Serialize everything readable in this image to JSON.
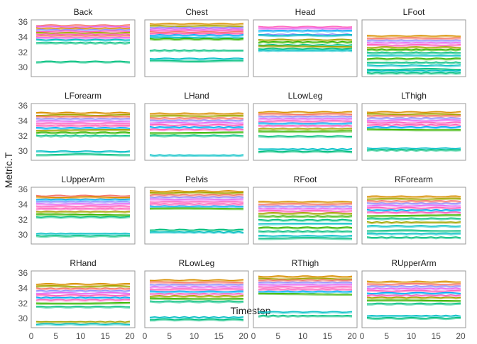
{
  "chart_data": {
    "type": "line",
    "layout": "facet_wrap_4x4",
    "xlabel": "Timestep",
    "ylabel": "Metric.T",
    "xlim": [
      0,
      21
    ],
    "ylim": [
      28.8,
      36.3
    ],
    "x_ticks": [
      0,
      5,
      10,
      15,
      20
    ],
    "y_ticks": [
      30,
      32,
      34,
      36
    ],
    "x_values": [
      1,
      2,
      3,
      4,
      5,
      6,
      7,
      8,
      9,
      10,
      11,
      12,
      13,
      14,
      15,
      16,
      17,
      18,
      19,
      20
    ],
    "palette": [
      "#F8766D",
      "#D89000",
      "#A3A500",
      "#39B600",
      "#00BF7D",
      "#00BFC4",
      "#00B0F6",
      "#9590FF",
      "#E76BF3",
      "#FF62BC"
    ],
    "note_series": "Each panel shows many overlapping per-subject time series; levels listed per panel are approximate constant values read from the plot (color index into palette).",
    "panels": [
      {
        "name": "Back",
        "series": [
          [
            0,
            35.6
          ],
          [
            8,
            35.4
          ],
          [
            1,
            35.2
          ],
          [
            7,
            35.0
          ],
          [
            9,
            34.8
          ],
          [
            2,
            34.6
          ],
          [
            9,
            34.4
          ],
          [
            0,
            34.2
          ],
          [
            8,
            34.0
          ],
          [
            5,
            33.7
          ],
          [
            4,
            33.3
          ],
          [
            4,
            30.8
          ]
        ]
      },
      {
        "name": "Chest",
        "series": [
          [
            1,
            35.8
          ],
          [
            2,
            35.5
          ],
          [
            7,
            35.3
          ],
          [
            8,
            35.1
          ],
          [
            9,
            34.9
          ],
          [
            0,
            34.7
          ],
          [
            9,
            34.5
          ],
          [
            6,
            34.3
          ],
          [
            5,
            34.0
          ],
          [
            3,
            33.8
          ],
          [
            4,
            32.3
          ],
          [
            5,
            31.2
          ],
          [
            4,
            30.9
          ]
        ]
      },
      {
        "name": "Head",
        "series": [
          [
            9,
            35.4
          ],
          [
            8,
            35.2
          ],
          [
            6,
            34.9
          ],
          [
            7,
            34.4
          ],
          [
            5,
            34.3
          ],
          [
            2,
            33.7
          ],
          [
            3,
            33.4
          ],
          [
            4,
            33.0
          ],
          [
            2,
            32.8
          ],
          [
            4,
            32.5
          ],
          [
            5,
            32.3
          ]
        ]
      },
      {
        "name": "LFoot",
        "series": [
          [
            1,
            34.2
          ],
          [
            0,
            33.9
          ],
          [
            7,
            33.6
          ],
          [
            8,
            33.3
          ],
          [
            9,
            33.0
          ],
          [
            2,
            32.7
          ],
          [
            3,
            32.4
          ],
          [
            4,
            32.0
          ],
          [
            5,
            31.6
          ],
          [
            3,
            31.2
          ],
          [
            4,
            30.7
          ],
          [
            5,
            30.3
          ],
          [
            4,
            29.8
          ],
          [
            5,
            29.6
          ],
          [
            4,
            29.3
          ]
        ]
      },
      {
        "name": "LForearm",
        "series": [
          [
            1,
            35.1
          ],
          [
            2,
            34.8
          ],
          [
            0,
            34.6
          ],
          [
            7,
            34.3
          ],
          [
            8,
            34.0
          ],
          [
            9,
            33.7
          ],
          [
            9,
            33.4
          ],
          [
            6,
            33.1
          ],
          [
            2,
            32.8
          ],
          [
            3,
            32.5
          ],
          [
            4,
            32.1
          ],
          [
            5,
            30.0
          ],
          [
            4,
            29.6
          ]
        ]
      },
      {
        "name": "LHand",
        "series": [
          [
            1,
            35.0
          ],
          [
            2,
            34.7
          ],
          [
            0,
            34.4
          ],
          [
            7,
            34.1
          ],
          [
            8,
            33.8
          ],
          [
            9,
            33.5
          ],
          [
            6,
            33.2
          ],
          [
            9,
            32.9
          ],
          [
            3,
            32.5
          ],
          [
            4,
            32.1
          ],
          [
            5,
            29.5
          ]
        ]
      },
      {
        "name": "LLowLeg",
        "series": [
          [
            1,
            35.2
          ],
          [
            0,
            34.9
          ],
          [
            7,
            34.6
          ],
          [
            8,
            34.3
          ],
          [
            9,
            34.0
          ],
          [
            6,
            33.7
          ],
          [
            9,
            33.4
          ],
          [
            2,
            33.0
          ],
          [
            3,
            32.7
          ],
          [
            4,
            32.0
          ],
          [
            5,
            30.3
          ],
          [
            4,
            30.0
          ]
        ]
      },
      {
        "name": "LThigh",
        "series": [
          [
            1,
            35.2
          ],
          [
            2,
            34.9
          ],
          [
            0,
            34.7
          ],
          [
            7,
            34.4
          ],
          [
            8,
            34.1
          ],
          [
            9,
            33.8
          ],
          [
            9,
            33.5
          ],
          [
            6,
            33.2
          ],
          [
            3,
            32.9
          ],
          [
            5,
            30.4
          ],
          [
            4,
            30.2
          ]
        ]
      },
      {
        "name": "LUpperArm",
        "series": [
          [
            0,
            35.2
          ],
          [
            1,
            35.0
          ],
          [
            6,
            34.7
          ],
          [
            7,
            34.4
          ],
          [
            8,
            34.1
          ],
          [
            9,
            33.8
          ],
          [
            9,
            33.5
          ],
          [
            2,
            33.1
          ],
          [
            3,
            32.7
          ],
          [
            4,
            32.4
          ],
          [
            5,
            30.2
          ],
          [
            4,
            29.9
          ]
        ]
      },
      {
        "name": "Pelvis",
        "series": [
          [
            1,
            35.8
          ],
          [
            2,
            35.6
          ],
          [
            0,
            35.3
          ],
          [
            7,
            35.0
          ],
          [
            8,
            34.7
          ],
          [
            9,
            34.4
          ],
          [
            9,
            34.1
          ],
          [
            6,
            33.8
          ],
          [
            3,
            33.5
          ],
          [
            4,
            30.7
          ],
          [
            5,
            30.4
          ]
        ]
      },
      {
        "name": "RFoot",
        "series": [
          [
            1,
            34.4
          ],
          [
            0,
            34.1
          ],
          [
            7,
            33.8
          ],
          [
            8,
            33.5
          ],
          [
            9,
            33.2
          ],
          [
            2,
            32.9
          ],
          [
            3,
            32.5
          ],
          [
            4,
            32.0
          ],
          [
            5,
            31.5
          ],
          [
            3,
            31.0
          ],
          [
            4,
            30.5
          ],
          [
            5,
            29.9
          ],
          [
            4,
            29.6
          ]
        ]
      },
      {
        "name": "RForearm",
        "series": [
          [
            1,
            35.1
          ],
          [
            2,
            34.8
          ],
          [
            0,
            34.5
          ],
          [
            7,
            34.2
          ],
          [
            8,
            33.9
          ],
          [
            9,
            33.6
          ],
          [
            6,
            33.3
          ],
          [
            9,
            33.0
          ],
          [
            3,
            32.6
          ],
          [
            4,
            32.2
          ],
          [
            2,
            31.7
          ],
          [
            5,
            31.2
          ],
          [
            4,
            30.6
          ],
          [
            5,
            30.2
          ],
          [
            4,
            29.7
          ]
        ]
      },
      {
        "name": "RHand",
        "series": [
          [
            1,
            34.6
          ],
          [
            2,
            34.3
          ],
          [
            0,
            34.0
          ],
          [
            7,
            33.7
          ],
          [
            8,
            33.4
          ],
          [
            9,
            33.1
          ],
          [
            6,
            32.8
          ],
          [
            9,
            32.5
          ],
          [
            3,
            32.1
          ],
          [
            4,
            31.6
          ],
          [
            2,
            29.6
          ],
          [
            5,
            29.3
          ]
        ]
      },
      {
        "name": "RLowLeg",
        "series": [
          [
            1,
            35.1
          ],
          [
            0,
            34.8
          ],
          [
            7,
            34.5
          ],
          [
            8,
            34.2
          ],
          [
            9,
            33.9
          ],
          [
            6,
            33.6
          ],
          [
            9,
            33.3
          ],
          [
            2,
            33.0
          ],
          [
            3,
            32.7
          ],
          [
            4,
            32.3
          ],
          [
            5,
            30.2
          ],
          [
            4,
            29.9
          ]
        ]
      },
      {
        "name": "RThigh",
        "series": [
          [
            1,
            35.6
          ],
          [
            2,
            35.3
          ],
          [
            0,
            35.1
          ],
          [
            7,
            34.8
          ],
          [
            8,
            34.5
          ],
          [
            9,
            34.2
          ],
          [
            9,
            33.9
          ],
          [
            6,
            33.6
          ],
          [
            3,
            33.3
          ],
          [
            5,
            30.9
          ],
          [
            4,
            30.4
          ]
        ]
      },
      {
        "name": "RUpperArm",
        "series": [
          [
            1,
            34.9
          ],
          [
            0,
            34.6
          ],
          [
            7,
            34.3
          ],
          [
            8,
            34.0
          ],
          [
            9,
            33.7
          ],
          [
            6,
            33.4
          ],
          [
            9,
            33.1
          ],
          [
            2,
            32.8
          ],
          [
            3,
            32.4
          ],
          [
            4,
            32.0
          ],
          [
            5,
            30.4
          ],
          [
            4,
            30.1
          ]
        ]
      }
    ]
  }
}
